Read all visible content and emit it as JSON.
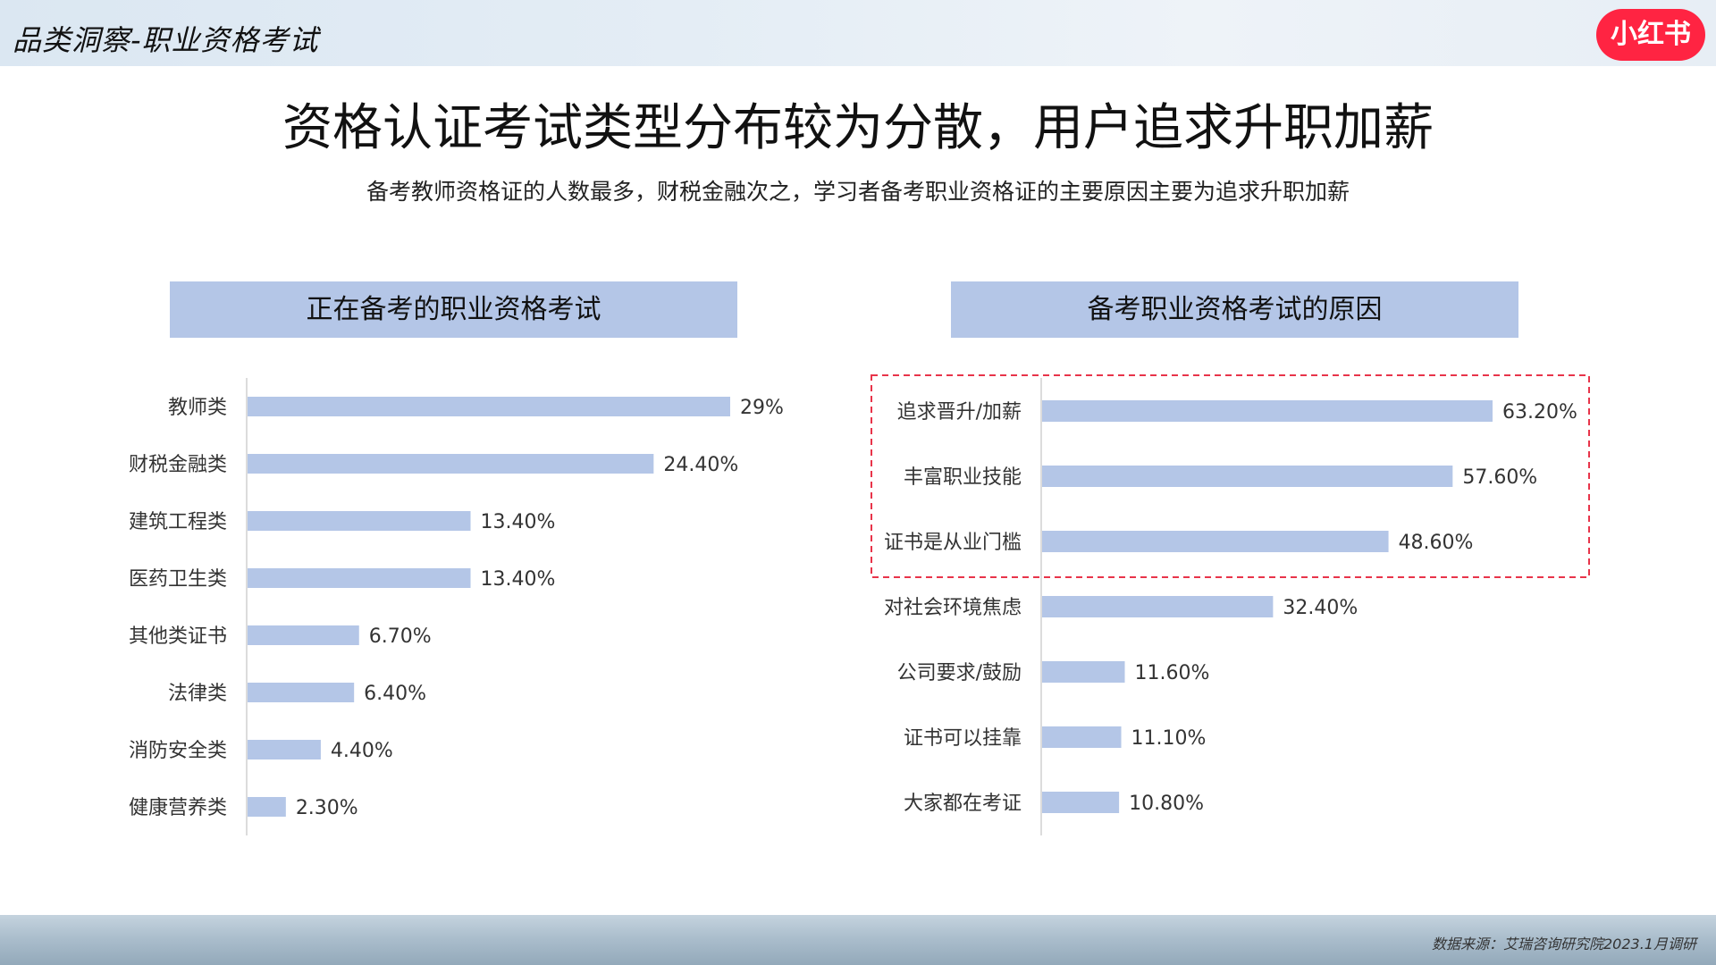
{
  "header": {
    "section_label": "品类洞察-职业资格考试",
    "logo_text": "小红书"
  },
  "title": "资格认证考试类型分布较为分散，用户追求升职加薪",
  "subtitle": "备考教师资格证的人数最多，财税金融次之，学习者备考职业资格证的主要原因主要为追求升职加薪",
  "footer": {
    "source": "数据来源：艾瑞咨询研究院2023.1月调研"
  },
  "colors": {
    "bar": "#b4c6e7",
    "header_bg": "#b4c6e7",
    "highlight_border": "#e8344a",
    "logo_bg": "#ff2442"
  },
  "chart_data": [
    {
      "type": "bar",
      "orientation": "horizontal",
      "title": "正在备考的职业资格考试",
      "categories": [
        "教师类",
        "财税金融类",
        "建筑工程类",
        "医药卫生类",
        "其他类证书",
        "法律类",
        "消防安全类",
        "健康营养类"
      ],
      "values": [
        29,
        24.4,
        13.4,
        13.4,
        6.7,
        6.4,
        4.4,
        2.3
      ],
      "labels": [
        "29%",
        "24.40%",
        "13.40%",
        "13.40%",
        "6.70%",
        "6.40%",
        "4.40%",
        "2.30%"
      ],
      "unit": "%",
      "grid": false,
      "legend": "none"
    },
    {
      "type": "bar",
      "orientation": "horizontal",
      "title": "备考职业资格考试的原因",
      "categories": [
        "追求晋升/加薪",
        "丰富职业技能",
        "证书是从业门槛",
        "对社会环境焦虑",
        "公司要求/鼓励",
        "证书可以挂靠",
        "大家都在考证"
      ],
      "values": [
        63.2,
        57.6,
        48.6,
        32.4,
        11.6,
        11.1,
        10.8
      ],
      "labels": [
        "63.20%",
        "57.60%",
        "48.60%",
        "32.40%",
        "11.60%",
        "11.10%",
        "10.80%"
      ],
      "unit": "%",
      "grid": false,
      "legend": "none",
      "highlighted_categories": [
        "追求晋升/加薪",
        "丰富职业技能",
        "证书是从业门槛"
      ]
    }
  ]
}
